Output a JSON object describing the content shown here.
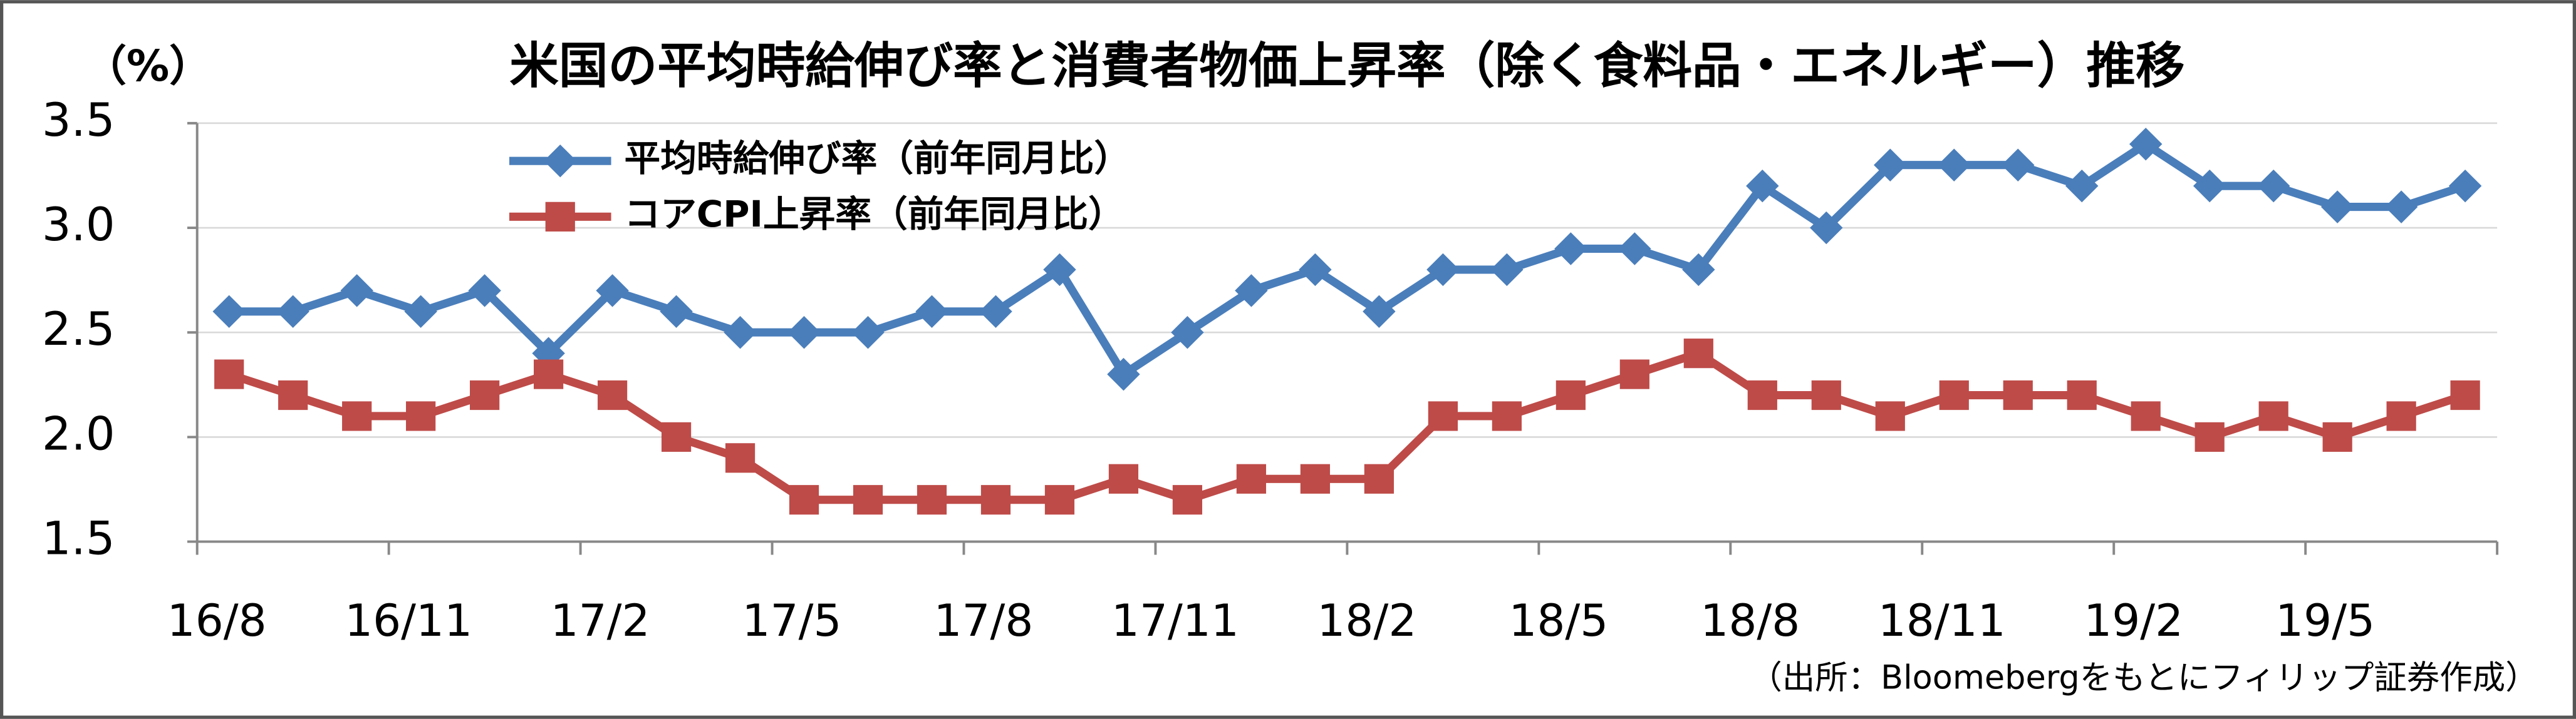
{
  "chart_data": {
    "type": "line",
    "title": "米国の平均時給伸び率と消費者物価上昇率（除く食料品・エネルギー）推移",
    "y_label": "（%）",
    "source": "（出所：Bloomebergをもとにフィリップ証券作成）",
    "categories": [
      "16/8",
      null,
      null,
      "16/11",
      null,
      null,
      "17/2",
      null,
      null,
      "17/5",
      null,
      null,
      "17/8",
      null,
      null,
      "17/11",
      null,
      null,
      "18/2",
      null,
      null,
      "18/5",
      null,
      null,
      "18/8",
      null,
      null,
      "18/11",
      null,
      null,
      "19/2",
      null,
      null,
      "19/5",
      null,
      null
    ],
    "series": [
      {
        "name": "平均時給伸び率（前年同月比）",
        "color": "#4a7ebb",
        "marker": "diamond",
        "values": [
          2.6,
          2.6,
          2.7,
          2.6,
          2.7,
          2.4,
          2.7,
          2.6,
          2.5,
          2.5,
          2.5,
          2.6,
          2.6,
          2.8,
          2.3,
          2.5,
          2.7,
          2.8,
          2.6,
          2.8,
          2.8,
          2.9,
          2.9,
          2.8,
          3.2,
          3.0,
          3.3,
          3.3,
          3.3,
          3.2,
          3.4,
          3.2,
          3.2,
          3.1,
          3.1,
          3.2
        ]
      },
      {
        "name": "コアCPI上昇率（前年同月比）",
        "color": "#be4b48",
        "marker": "square",
        "values": [
          2.3,
          2.2,
          2.1,
          2.1,
          2.2,
          2.3,
          2.2,
          2.0,
          1.9,
          1.7,
          1.7,
          1.7,
          1.7,
          1.7,
          1.8,
          1.7,
          1.8,
          1.8,
          1.8,
          2.1,
          2.1,
          2.2,
          2.3,
          2.4,
          2.2,
          2.2,
          2.1,
          2.2,
          2.2,
          2.2,
          2.1,
          2.0,
          2.1,
          2.0,
          2.1,
          2.2
        ]
      }
    ],
    "ylim": [
      1.5,
      3.5
    ],
    "yticks": [
      1.5,
      {
        "value": 2,
        "label": "2.0"
      },
      2.5,
      {
        "value": 3,
        "label": "3.0"
      },
      3.5
    ],
    "grid": true,
    "legend": "upper left"
  }
}
